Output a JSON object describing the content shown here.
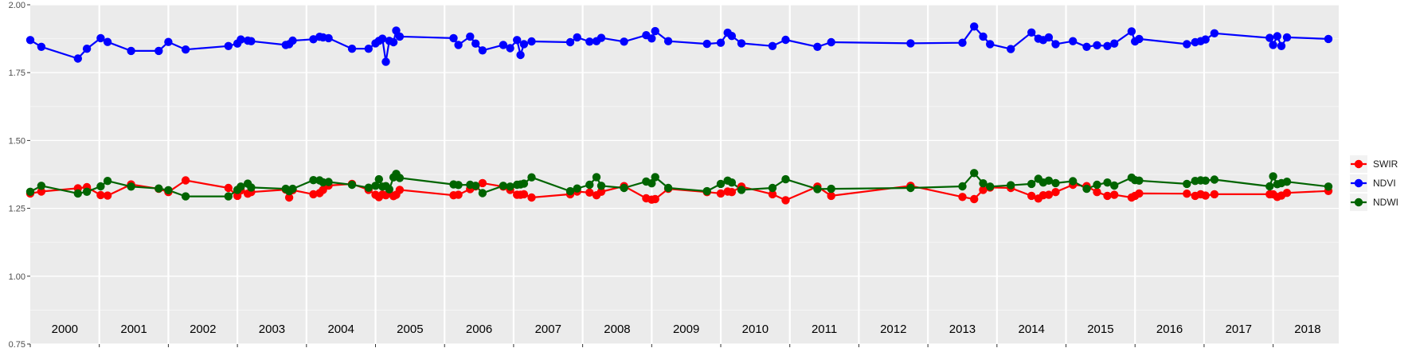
{
  "chart_data": {
    "type": "line",
    "title": "",
    "xlabel": "",
    "ylabel": "",
    "xlim": [
      2000.0,
      2018.95
    ],
    "ylim": [
      0.75,
      2.0
    ],
    "yticks": [
      "0.75",
      "1.00",
      "1.25",
      "1.50",
      "1.75",
      "2.00"
    ],
    "year_labels": [
      "2000",
      "2001",
      "2002",
      "2003",
      "2004",
      "2005",
      "2006",
      "2007",
      "2008",
      "2009",
      "2010",
      "2011",
      "2012",
      "2013",
      "2014",
      "2015",
      "2016",
      "2017",
      "2018"
    ],
    "legend": {
      "position": "right",
      "entries": [
        "SWIR",
        "NDVI",
        "NDWI"
      ]
    },
    "series": [
      {
        "name": "NDVI",
        "color": "#0000ff",
        "points": [
          [
            2000.0,
            1.87
          ],
          [
            2000.16,
            1.845
          ],
          [
            2000.69,
            1.802
          ],
          [
            2000.82,
            1.838
          ],
          [
            2001.02,
            1.877
          ],
          [
            2001.12,
            1.863
          ],
          [
            2001.46,
            1.83
          ],
          [
            2001.86,
            1.83
          ],
          [
            2002.0,
            1.863
          ],
          [
            2002.25,
            1.835
          ],
          [
            2002.87,
            1.848
          ],
          [
            2003.0,
            1.857
          ],
          [
            2003.05,
            1.872
          ],
          [
            2003.15,
            1.868
          ],
          [
            2003.2,
            1.866
          ],
          [
            2003.7,
            1.852
          ],
          [
            2003.75,
            1.855
          ],
          [
            2003.8,
            1.868
          ],
          [
            2004.1,
            1.873
          ],
          [
            2004.19,
            1.882
          ],
          [
            2004.24,
            1.88
          ],
          [
            2004.32,
            1.877
          ],
          [
            2004.66,
            1.838
          ],
          [
            2004.9,
            1.838
          ],
          [
            2005.0,
            1.858
          ],
          [
            2005.05,
            1.867
          ],
          [
            2005.1,
            1.875
          ],
          [
            2005.15,
            1.79
          ],
          [
            2005.2,
            1.867
          ],
          [
            2005.26,
            1.862
          ],
          [
            2005.3,
            1.905
          ],
          [
            2005.35,
            1.883
          ],
          [
            2006.13,
            1.877
          ],
          [
            2006.2,
            1.852
          ],
          [
            2006.37,
            1.883
          ],
          [
            2006.45,
            1.857
          ],
          [
            2006.55,
            1.832
          ],
          [
            2006.85,
            1.852
          ],
          [
            2006.95,
            1.84
          ],
          [
            2007.05,
            1.87
          ],
          [
            2007.1,
            1.815
          ],
          [
            2007.15,
            1.855
          ],
          [
            2007.26,
            1.865
          ],
          [
            2007.82,
            1.862
          ],
          [
            2007.92,
            1.88
          ],
          [
            2008.1,
            1.864
          ],
          [
            2008.2,
            1.866
          ],
          [
            2008.27,
            1.878
          ],
          [
            2008.6,
            1.864
          ],
          [
            2008.92,
            1.888
          ],
          [
            2009.0,
            1.876
          ],
          [
            2009.05,
            1.903
          ],
          [
            2009.24,
            1.866
          ],
          [
            2009.8,
            1.856
          ],
          [
            2010.0,
            1.86
          ],
          [
            2010.1,
            1.897
          ],
          [
            2010.16,
            1.885
          ],
          [
            2010.3,
            1.858
          ],
          [
            2010.75,
            1.848
          ],
          [
            2010.94,
            1.871
          ],
          [
            2011.4,
            1.845
          ],
          [
            2011.6,
            1.862
          ],
          [
            2012.75,
            1.858
          ],
          [
            2013.5,
            1.86
          ],
          [
            2013.67,
            1.92
          ],
          [
            2013.8,
            1.883
          ],
          [
            2013.9,
            1.855
          ],
          [
            2014.2,
            1.837
          ],
          [
            2014.5,
            1.898
          ],
          [
            2014.6,
            1.875
          ],
          [
            2014.67,
            1.87
          ],
          [
            2014.75,
            1.88
          ],
          [
            2014.85,
            1.855
          ],
          [
            2015.1,
            1.866
          ],
          [
            2015.3,
            1.845
          ],
          [
            2015.45,
            1.851
          ],
          [
            2015.6,
            1.848
          ],
          [
            2015.7,
            1.857
          ],
          [
            2015.95,
            1.902
          ],
          [
            2016.0,
            1.865
          ],
          [
            2016.06,
            1.874
          ],
          [
            2016.75,
            1.855
          ],
          [
            2016.87,
            1.862
          ],
          [
            2016.95,
            1.866
          ],
          [
            2017.02,
            1.872
          ],
          [
            2017.15,
            1.895
          ],
          [
            2017.95,
            1.878
          ],
          [
            2018.0,
            1.852
          ],
          [
            2018.06,
            1.884
          ],
          [
            2018.12,
            1.848
          ],
          [
            2018.2,
            1.88
          ],
          [
            2018.8,
            1.874
          ]
        ]
      },
      {
        "name": "SWIR",
        "color": "#ff0000",
        "points": [
          [
            2000.0,
            1.305
          ],
          [
            2000.16,
            1.312
          ],
          [
            2000.69,
            1.324
          ],
          [
            2000.82,
            1.328
          ],
          [
            2001.02,
            1.299
          ],
          [
            2001.12,
            1.297
          ],
          [
            2001.46,
            1.338
          ],
          [
            2001.86,
            1.322
          ],
          [
            2002.0,
            1.31
          ],
          [
            2002.25,
            1.353
          ],
          [
            2002.87,
            1.325
          ],
          [
            2003.0,
            1.296
          ],
          [
            2003.05,
            1.316
          ],
          [
            2003.15,
            1.304
          ],
          [
            2003.2,
            1.31
          ],
          [
            2003.7,
            1.319
          ],
          [
            2003.75,
            1.29
          ],
          [
            2003.8,
            1.317
          ],
          [
            2004.1,
            1.302
          ],
          [
            2004.19,
            1.306
          ],
          [
            2004.24,
            1.318
          ],
          [
            2004.32,
            1.334
          ],
          [
            2004.66,
            1.34
          ],
          [
            2004.9,
            1.318
          ],
          [
            2005.0,
            1.3
          ],
          [
            2005.05,
            1.291
          ],
          [
            2005.1,
            1.301
          ],
          [
            2005.15,
            1.298
          ],
          [
            2005.2,
            1.306
          ],
          [
            2005.26,
            1.295
          ],
          [
            2005.3,
            1.3
          ],
          [
            2005.35,
            1.318
          ],
          [
            2006.13,
            1.298
          ],
          [
            2006.2,
            1.3
          ],
          [
            2006.37,
            1.321
          ],
          [
            2006.45,
            1.331
          ],
          [
            2006.55,
            1.343
          ],
          [
            2006.85,
            1.33
          ],
          [
            2006.95,
            1.318
          ],
          [
            2007.05,
            1.3
          ],
          [
            2007.1,
            1.3
          ],
          [
            2007.15,
            1.302
          ],
          [
            2007.26,
            1.29
          ],
          [
            2007.82,
            1.302
          ],
          [
            2007.92,
            1.312
          ],
          [
            2008.1,
            1.308
          ],
          [
            2008.2,
            1.298
          ],
          [
            2008.27,
            1.311
          ],
          [
            2008.6,
            1.332
          ],
          [
            2008.92,
            1.287
          ],
          [
            2009.0,
            1.282
          ],
          [
            2009.05,
            1.284
          ],
          [
            2009.24,
            1.322
          ],
          [
            2009.8,
            1.31
          ],
          [
            2010.0,
            1.305
          ],
          [
            2010.1,
            1.312
          ],
          [
            2010.16,
            1.31
          ],
          [
            2010.3,
            1.33
          ],
          [
            2010.75,
            1.302
          ],
          [
            2010.94,
            1.28
          ],
          [
            2011.4,
            1.33
          ],
          [
            2011.6,
            1.296
          ],
          [
            2012.75,
            1.333
          ],
          [
            2013.5,
            1.292
          ],
          [
            2013.67,
            1.284
          ],
          [
            2013.8,
            1.318
          ],
          [
            2013.9,
            1.327
          ],
          [
            2014.2,
            1.325
          ],
          [
            2014.5,
            1.296
          ],
          [
            2014.6,
            1.286
          ],
          [
            2014.67,
            1.298
          ],
          [
            2014.75,
            1.3
          ],
          [
            2014.85,
            1.31
          ],
          [
            2015.1,
            1.337
          ],
          [
            2015.3,
            1.332
          ],
          [
            2015.45,
            1.31
          ],
          [
            2015.6,
            1.296
          ],
          [
            2015.7,
            1.3
          ],
          [
            2015.95,
            1.29
          ],
          [
            2016.0,
            1.296
          ],
          [
            2016.06,
            1.305
          ],
          [
            2016.75,
            1.304
          ],
          [
            2016.87,
            1.296
          ],
          [
            2016.95,
            1.302
          ],
          [
            2017.02,
            1.297
          ],
          [
            2017.15,
            1.302
          ],
          [
            2017.95,
            1.302
          ],
          [
            2018.0,
            1.302
          ],
          [
            2018.06,
            1.292
          ],
          [
            2018.12,
            1.297
          ],
          [
            2018.2,
            1.307
          ],
          [
            2018.8,
            1.314
          ]
        ]
      },
      {
        "name": "NDWI",
        "color": "#006400",
        "points": [
          [
            2000.0,
            1.311
          ],
          [
            2000.16,
            1.333
          ],
          [
            2000.69,
            1.305
          ],
          [
            2000.82,
            1.311
          ],
          [
            2001.02,
            1.331
          ],
          [
            2001.12,
            1.351
          ],
          [
            2001.46,
            1.33
          ],
          [
            2001.86,
            1.323
          ],
          [
            2002.0,
            1.317
          ],
          [
            2002.25,
            1.294
          ],
          [
            2002.87,
            1.294
          ],
          [
            2003.0,
            1.318
          ],
          [
            2003.05,
            1.33
          ],
          [
            2003.15,
            1.341
          ],
          [
            2003.2,
            1.327
          ],
          [
            2003.7,
            1.322
          ],
          [
            2003.75,
            1.313
          ],
          [
            2003.8,
            1.322
          ],
          [
            2004.1,
            1.354
          ],
          [
            2004.19,
            1.353
          ],
          [
            2004.24,
            1.346
          ],
          [
            2004.32,
            1.347
          ],
          [
            2004.66,
            1.337
          ],
          [
            2004.9,
            1.326
          ],
          [
            2005.0,
            1.333
          ],
          [
            2005.05,
            1.357
          ],
          [
            2005.1,
            1.33
          ],
          [
            2005.15,
            1.332
          ],
          [
            2005.2,
            1.32
          ],
          [
            2005.26,
            1.364
          ],
          [
            2005.3,
            1.377
          ],
          [
            2005.35,
            1.362
          ],
          [
            2006.13,
            1.338
          ],
          [
            2006.2,
            1.336
          ],
          [
            2006.37,
            1.337
          ],
          [
            2006.45,
            1.333
          ],
          [
            2006.55,
            1.306
          ],
          [
            2006.85,
            1.333
          ],
          [
            2006.95,
            1.33
          ],
          [
            2007.05,
            1.337
          ],
          [
            2007.1,
            1.338
          ],
          [
            2007.15,
            1.341
          ],
          [
            2007.26,
            1.364
          ],
          [
            2007.82,
            1.313
          ],
          [
            2007.92,
            1.323
          ],
          [
            2008.1,
            1.337
          ],
          [
            2008.2,
            1.365
          ],
          [
            2008.27,
            1.333
          ],
          [
            2008.6,
            1.325
          ],
          [
            2008.92,
            1.349
          ],
          [
            2009.0,
            1.342
          ],
          [
            2009.05,
            1.365
          ],
          [
            2009.24,
            1.325
          ],
          [
            2009.8,
            1.313
          ],
          [
            2010.0,
            1.34
          ],
          [
            2010.1,
            1.352
          ],
          [
            2010.16,
            1.345
          ],
          [
            2010.3,
            1.318
          ],
          [
            2010.75,
            1.325
          ],
          [
            2010.94,
            1.357
          ],
          [
            2011.4,
            1.321
          ],
          [
            2011.6,
            1.322
          ],
          [
            2012.75,
            1.325
          ],
          [
            2013.5,
            1.331
          ],
          [
            2013.67,
            1.38
          ],
          [
            2013.8,
            1.342
          ],
          [
            2013.9,
            1.33
          ],
          [
            2014.2,
            1.335
          ],
          [
            2014.5,
            1.34
          ],
          [
            2014.6,
            1.359
          ],
          [
            2014.67,
            1.345
          ],
          [
            2014.75,
            1.352
          ],
          [
            2014.85,
            1.343
          ],
          [
            2015.1,
            1.35
          ],
          [
            2015.3,
            1.322
          ],
          [
            2015.45,
            1.337
          ],
          [
            2015.6,
            1.345
          ],
          [
            2015.7,
            1.334
          ],
          [
            2015.95,
            1.363
          ],
          [
            2016.0,
            1.354
          ],
          [
            2016.06,
            1.352
          ],
          [
            2016.75,
            1.34
          ],
          [
            2016.87,
            1.351
          ],
          [
            2016.95,
            1.353
          ],
          [
            2017.02,
            1.352
          ],
          [
            2017.15,
            1.356
          ],
          [
            2017.95,
            1.331
          ],
          [
            2018.0,
            1.368
          ],
          [
            2018.06,
            1.339
          ],
          [
            2018.12,
            1.343
          ],
          [
            2018.2,
            1.348
          ],
          [
            2018.8,
            1.33
          ]
        ]
      }
    ]
  }
}
